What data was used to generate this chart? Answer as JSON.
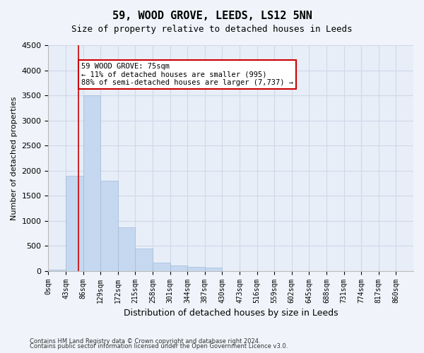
{
  "title": "59, WOOD GROVE, LEEDS, LS12 5NN",
  "subtitle": "Size of property relative to detached houses in Leeds",
  "xlabel": "Distribution of detached houses by size in Leeds",
  "ylabel": "Number of detached properties",
  "bar_color": "#c5d8f0",
  "bar_edge_color": "#a0bcd8",
  "grid_color": "#d0d8e8",
  "background_color": "#f0f4fa",
  "plot_bg_color": "#e8eef8",
  "tick_labels": [
    "0sqm",
    "43sqm",
    "86sqm",
    "129sqm",
    "172sqm",
    "215sqm",
    "258sqm",
    "301sqm",
    "344sqm",
    "387sqm",
    "430sqm",
    "473sqm",
    "516sqm",
    "559sqm",
    "602sqm",
    "645sqm",
    "688sqm",
    "731sqm",
    "774sqm",
    "817sqm",
    "860sqm"
  ],
  "bar_values": [
    30,
    1900,
    3500,
    1800,
    870,
    450,
    160,
    110,
    80,
    60,
    0,
    0,
    0,
    0,
    0,
    0,
    0,
    0,
    0,
    0,
    0
  ],
  "ylim": [
    0,
    4500
  ],
  "yticks": [
    0,
    500,
    1000,
    1500,
    2000,
    2500,
    3000,
    3500,
    4000,
    4500
  ],
  "property_line_x": 75,
  "property_line_bin": 1.74,
  "annotation_text": "59 WOOD GROVE: 75sqm\n← 11% of detached houses are smaller (995)\n88% of semi-detached houses are larger (7,737) →",
  "annotation_box_color": "#ffffff",
  "annotation_box_edge": "#cc0000",
  "line_color": "#cc0000",
  "footnote1": "Contains HM Land Registry data © Crown copyright and database right 2024.",
  "footnote2": "Contains public sector information licensed under the Open Government Licence v3.0."
}
